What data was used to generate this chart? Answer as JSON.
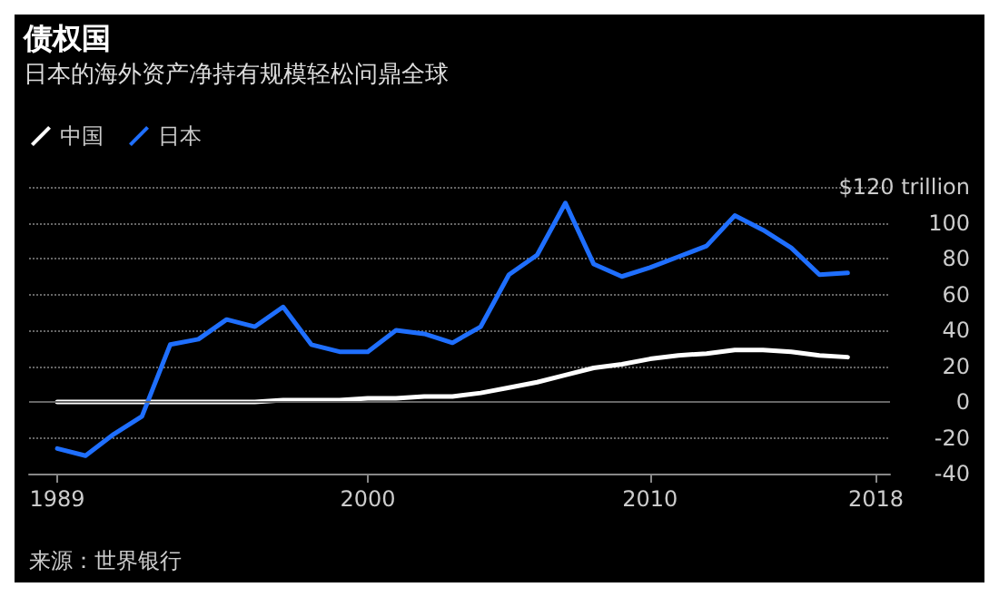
{
  "chart_data": {
    "type": "line",
    "title": "债权国",
    "subtitle": "日本的海外资产净持有规模轻松问鼎全球",
    "x": [
      1989,
      1990,
      1991,
      1992,
      1993,
      1994,
      1995,
      1996,
      1997,
      1998,
      1999,
      2000,
      2001,
      2002,
      2003,
      2004,
      2005,
      2006,
      2007,
      2008,
      2009,
      2010,
      2011,
      2012,
      2013,
      2014,
      2015,
      2016,
      2017
    ],
    "series": [
      {
        "name": "中国",
        "color": "#ffffff",
        "values": [
          0,
          0,
          0,
          0,
          0,
          0,
          0,
          0,
          1,
          1,
          1,
          2,
          2,
          3,
          3,
          5,
          8,
          11,
          15,
          19,
          21,
          24,
          26,
          27,
          29,
          29,
          28,
          26,
          25
        ]
      },
      {
        "name": "日本",
        "color": "#1f6fff",
        "values": [
          -26,
          -30,
          -18,
          -8,
          32,
          35,
          46,
          42,
          53,
          32,
          28,
          28,
          40,
          38,
          33,
          42,
          71,
          82,
          111,
          77,
          70,
          75,
          81,
          87,
          104,
          96,
          86,
          71,
          72
        ]
      }
    ],
    "xlim": [
      1988,
      2018.5
    ],
    "xticks": [
      1989,
      2000,
      2010,
      2018
    ],
    "ylim": [
      -40,
      120
    ],
    "yticks": [
      -40,
      -20,
      0,
      20,
      40,
      60,
      80,
      100,
      {
        "value": 120,
        "label": "$120 trillion"
      }
    ],
    "ref_lines": [
      {
        "axis": "y",
        "value": 0,
        "color": "#666666"
      }
    ],
    "grid": "y",
    "legend": "top left",
    "line_style": "solid",
    "marker": "none",
    "annotations": [
      "来源：世界银行"
    ]
  }
}
